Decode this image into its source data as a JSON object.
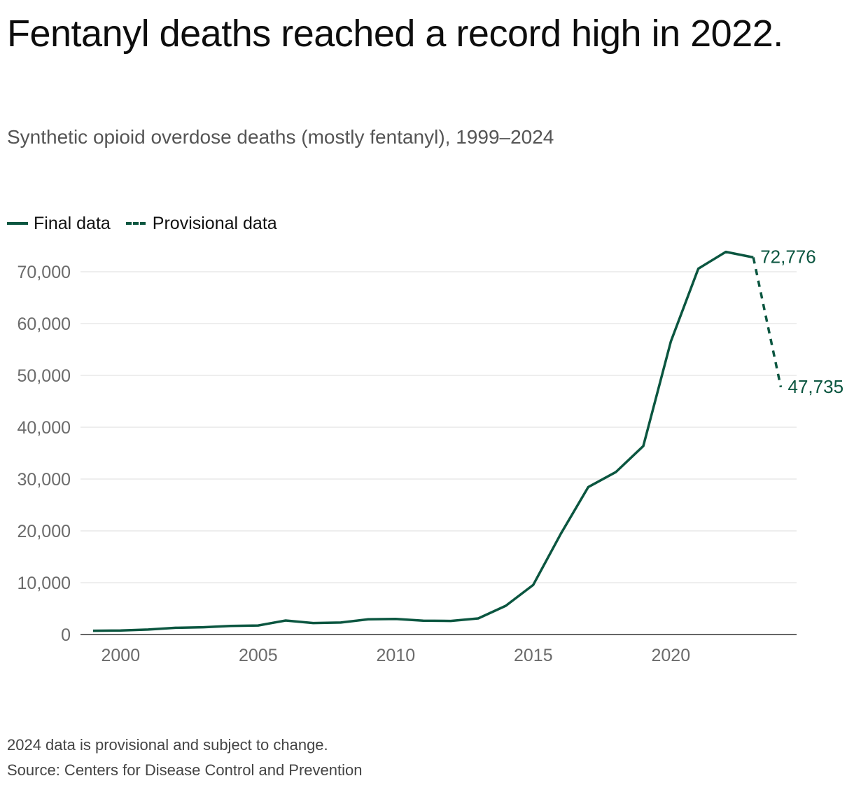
{
  "title": "Fentanyl deaths reached a record high in 2022.",
  "subtitle": "Synthetic opioid overdose deaths (mostly fentanyl), 1999–2024",
  "legend": {
    "final_label": "Final data",
    "provisional_label": "Provisional data"
  },
  "colors": {
    "line": "#0b5640",
    "grid": "#dddddd",
    "axis": "#333333",
    "tick_text": "#6b6b6b"
  },
  "chart_data": {
    "type": "line",
    "title": "Fentanyl deaths reached a record high in 2022.",
    "xlabel": "",
    "ylabel": "",
    "x": [
      1999,
      2000,
      2001,
      2002,
      2003,
      2004,
      2005,
      2006,
      2007,
      2008,
      2009,
      2010,
      2011,
      2012,
      2013,
      2014,
      2015,
      2016,
      2017,
      2018,
      2019,
      2020,
      2021,
      2022,
      2023,
      2024
    ],
    "series": [
      {
        "name": "Final data",
        "style": "solid",
        "x": [
          1999,
          2000,
          2001,
          2002,
          2003,
          2004,
          2005,
          2006,
          2007,
          2008,
          2009,
          2010,
          2011,
          2012,
          2013,
          2014,
          2015,
          2016,
          2017,
          2018,
          2019,
          2020,
          2021,
          2022,
          2023
        ],
        "values": [
          730,
          782,
          957,
          1295,
          1400,
          1664,
          1742,
          2707,
          2213,
          2306,
          2946,
          3007,
          2666,
          2628,
          3105,
          5544,
          9580,
          19413,
          28466,
          31335,
          36359,
          56516,
          70601,
          73838,
          72776
        ]
      },
      {
        "name": "Provisional data",
        "style": "dashed",
        "x": [
          2023,
          2024
        ],
        "values": [
          72776,
          47735
        ]
      }
    ],
    "end_labels": [
      {
        "year": 2023,
        "value": 72776,
        "text": "72,776"
      },
      {
        "year": 2024,
        "value": 47735,
        "text": "47,735"
      }
    ],
    "x_ticks": [
      2000,
      2005,
      2010,
      2015,
      2020
    ],
    "x_tick_labels": [
      "2000",
      "2005",
      "2010",
      "2015",
      "2020"
    ],
    "y_ticks": [
      0,
      10000,
      20000,
      30000,
      40000,
      50000,
      60000,
      70000
    ],
    "y_tick_labels": [
      "0",
      "10,000",
      "20,000",
      "30,000",
      "40,000",
      "50,000",
      "60,000",
      "70,000"
    ],
    "xlim": [
      1999,
      2024
    ],
    "ylim": [
      0,
      70000
    ],
    "grid": true,
    "legend_position": "top-left"
  },
  "footnotes": {
    "note": "2024 data is provisional and subject to change.",
    "source": "Source: Centers for Disease Control and Prevention"
  }
}
